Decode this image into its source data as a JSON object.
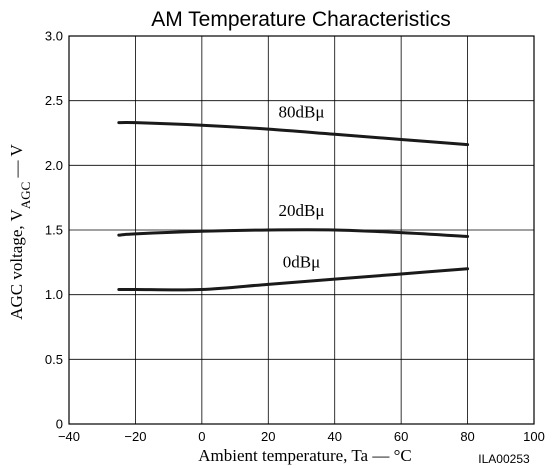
{
  "chart_data": {
    "type": "line",
    "title": "AM Temperature Characteristics",
    "xlabel": "Ambient temperature, Ta — °C",
    "ylabel": {
      "base": "AGC voltage, V",
      "subscript": "AGC",
      "suffix": " — V"
    },
    "figure_id": "ILA00253",
    "xlim": [
      -40,
      100
    ],
    "ylim": [
      0,
      3.0
    ],
    "x_ticks": [
      -40,
      -20,
      0,
      20,
      40,
      60,
      80,
      100
    ],
    "x_tick_labels": [
      "−40",
      "−20",
      "0",
      "20",
      "40",
      "60",
      "80",
      "100"
    ],
    "y_ticks": [
      0,
      0.5,
      1.0,
      1.5,
      2.0,
      2.5,
      3.0
    ],
    "y_tick_labels": [
      "0",
      "0.5",
      "1.0",
      "1.5",
      "2.0",
      "2.5",
      "3.0"
    ],
    "grid": true,
    "series": [
      {
        "name": "80dBμ",
        "x": [
          -25,
          -20,
          0,
          20,
          40,
          60,
          80
        ],
        "y": [
          2.33,
          2.33,
          2.31,
          2.28,
          2.24,
          2.2,
          2.16
        ]
      },
      {
        "name": "20dBμ",
        "x": [
          -25,
          -20,
          0,
          20,
          40,
          60,
          80
        ],
        "y": [
          1.46,
          1.47,
          1.49,
          1.5,
          1.5,
          1.48,
          1.45
        ]
      },
      {
        "name": "0dBμ",
        "x": [
          -25,
          -20,
          0,
          20,
          40,
          60,
          80
        ],
        "y": [
          1.04,
          1.04,
          1.04,
          1.08,
          1.12,
          1.16,
          1.2
        ]
      }
    ],
    "colors": {
      "line": "#1a1a1a",
      "grid": "#000000",
      "text": "#000000"
    }
  }
}
